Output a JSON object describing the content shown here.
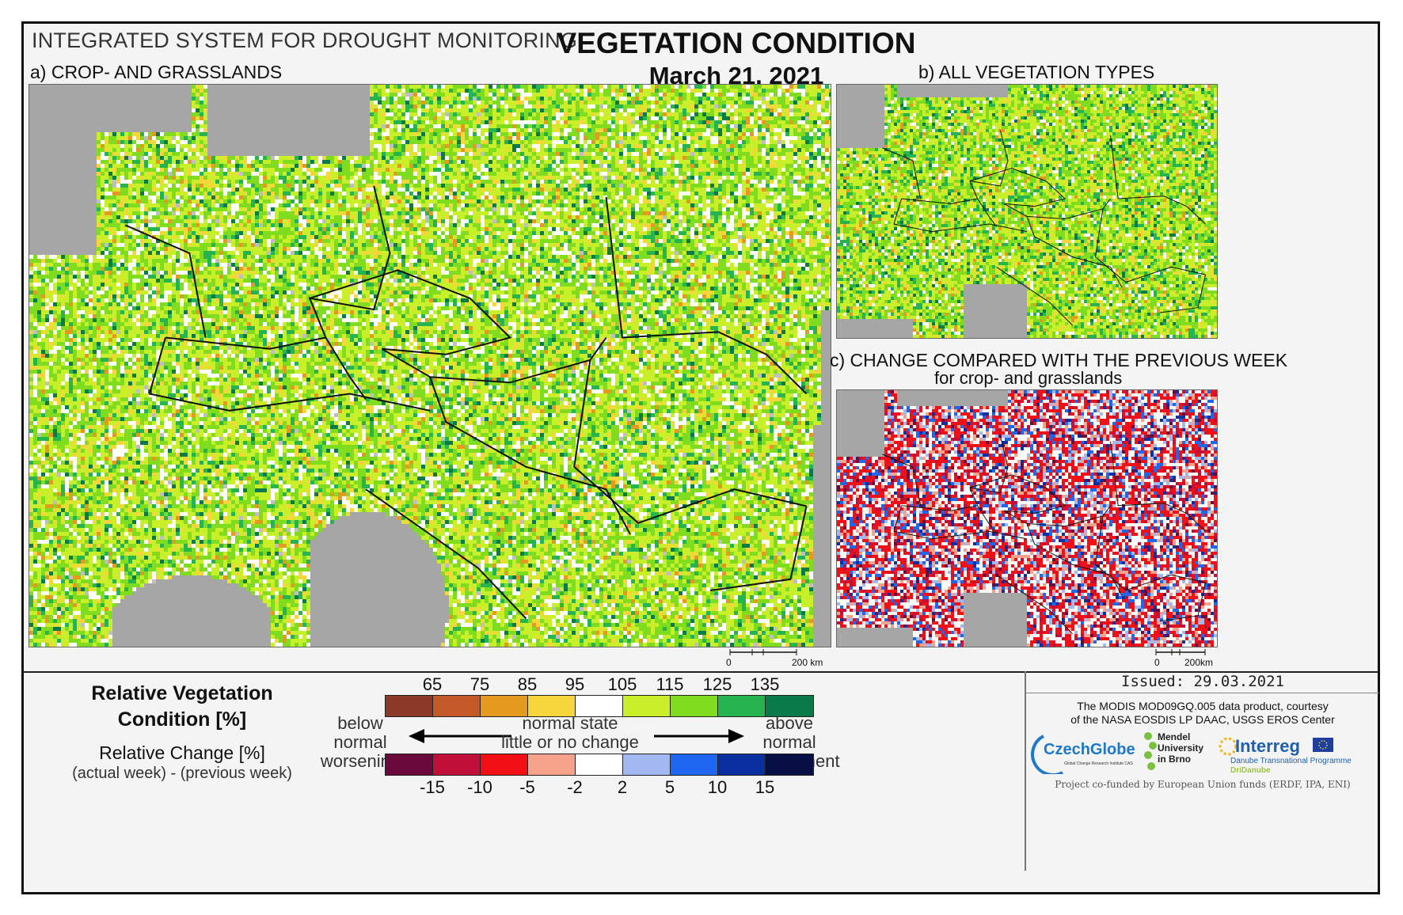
{
  "header": {
    "system_title": "INTEGRATED SYSTEM FOR DROUGHT MONITORING",
    "title": "VEGETATION CONDITION",
    "date": "March 21, 2021"
  },
  "panels": {
    "a": {
      "label": "a) CROP- AND GRASSLANDS",
      "scale_zero": "0",
      "scale_end": "200 km"
    },
    "b": {
      "label": "b) ALL VEGETATION TYPES"
    },
    "c": {
      "label": "c) CHANGE COMPARED WITH THE PREVIOUS WEEK",
      "sublabel": "for crop- and grasslands",
      "scale_zero": "0",
      "scale_end": "200km"
    }
  },
  "legend": {
    "rvc_title_line1": "Relative Vegetation",
    "rvc_title_line2": "Condition [%]",
    "rc_title": "Relative Change [%]",
    "rc_subtitle": "(actual week) - (previous week)",
    "rvc_ticks": [
      "65",
      "75",
      "85",
      "95",
      "105",
      "115",
      "125",
      "135"
    ],
    "rvc_colors": [
      "#8b3a2a",
      "#c45a28",
      "#e39a1f",
      "#f6d63a",
      "#ffffff",
      "#c8ef2a",
      "#7fdc1e",
      "#25b44f",
      "#0a7a4a"
    ],
    "rc_ticks": [
      "-15",
      "-10",
      "-5",
      "-2",
      "2",
      "5",
      "10",
      "15"
    ],
    "rc_colors": [
      "#6a0a3c",
      "#c0103a",
      "#f20f15",
      "#f7a38b",
      "#ffffff",
      "#a3b8f0",
      "#1f66f0",
      "#0a2fa0",
      "#070f45"
    ],
    "below_normal": "below normal",
    "worsening": "worsening",
    "normal_state": "normal state",
    "little_change": "little or no change",
    "above_normal": "above normal",
    "improvement": "improvement"
  },
  "credits": {
    "issued": "Issued: 29.03.2021",
    "modis_line1": "The MODIS MOD09GQ.005 data product, courtesy",
    "modis_line2": "of the NASA EOSDIS LP DAAC, USGS EROS Center",
    "czechglobe": "CzechGlobe",
    "czechglobe_sub": "Global Change Research Institute CAS",
    "mendel_1": "Mendel",
    "mendel_2": "University",
    "mendel_3": "in Brno",
    "interreg": "Interreg",
    "interreg_sub": "Danube Transnational Programme",
    "dridanube": "DriDanube",
    "cofunded": "Project co-funded by European Union funds (ERDF, IPA, ENI)"
  }
}
